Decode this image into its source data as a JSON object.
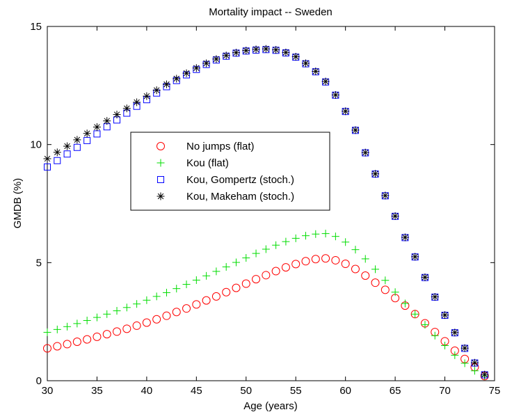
{
  "chart_data": {
    "type": "scatter",
    "title": "Mortality impact -- Sweden",
    "xlabel": "Age (years)",
    "ylabel": "GMDB (%)",
    "xlim": [
      30,
      75
    ],
    "ylim": [
      0,
      15
    ],
    "xticks": [
      30,
      35,
      40,
      45,
      50,
      55,
      60,
      65,
      70,
      75
    ],
    "yticks": [
      0,
      5,
      10,
      15
    ],
    "grid": false,
    "legend_position": "center-left",
    "x": [
      30,
      31,
      32,
      33,
      34,
      35,
      36,
      37,
      38,
      39,
      40,
      41,
      42,
      43,
      44,
      45,
      46,
      47,
      48,
      49,
      50,
      51,
      52,
      53,
      54,
      55,
      56,
      57,
      58,
      59,
      60,
      61,
      62,
      63,
      64,
      65,
      66,
      67,
      68,
      69,
      70,
      71,
      72,
      73,
      74
    ],
    "series": [
      {
        "name": "No jumps (flat)",
        "marker": "circle",
        "color": "#ff0000",
        "values": [
          1.37,
          1.46,
          1.55,
          1.65,
          1.75,
          1.86,
          1.97,
          2.08,
          2.2,
          2.33,
          2.46,
          2.6,
          2.75,
          2.91,
          3.06,
          3.23,
          3.4,
          3.57,
          3.75,
          3.93,
          4.11,
          4.3,
          4.47,
          4.64,
          4.8,
          4.94,
          5.06,
          5.15,
          5.18,
          5.1,
          4.95,
          4.73,
          4.45,
          4.15,
          3.85,
          3.5,
          3.18,
          2.82,
          2.43,
          2.06,
          1.67,
          1.27,
          0.92,
          0.58,
          0.2
        ]
      },
      {
        "name": "Kou (flat)",
        "marker": "plus",
        "color": "#00dd00",
        "values": [
          2.05,
          2.17,
          2.29,
          2.42,
          2.55,
          2.68,
          2.82,
          2.96,
          3.1,
          3.25,
          3.41,
          3.57,
          3.73,
          3.9,
          4.08,
          4.26,
          4.44,
          4.63,
          4.82,
          5.01,
          5.2,
          5.39,
          5.57,
          5.74,
          5.89,
          6.03,
          6.14,
          6.21,
          6.23,
          6.11,
          5.87,
          5.55,
          5.16,
          4.72,
          4.25,
          3.75,
          3.27,
          2.82,
          2.37,
          1.91,
          1.49,
          1.08,
          0.74,
          0.42,
          0.2
        ]
      },
      {
        "name": "Kou, Gompertz (stoch.)",
        "marker": "square",
        "color": "#0000ff",
        "values": [
          9.05,
          9.32,
          9.6,
          9.88,
          10.17,
          10.45,
          10.75,
          11.04,
          11.33,
          11.62,
          11.9,
          12.18,
          12.45,
          12.71,
          12.95,
          13.18,
          13.39,
          13.58,
          13.74,
          13.87,
          13.96,
          14.0,
          14.02,
          13.99,
          13.88,
          13.7,
          13.42,
          13.08,
          12.65,
          12.09,
          11.4,
          10.6,
          9.65,
          8.75,
          7.83,
          6.96,
          6.06,
          5.24,
          4.37,
          3.54,
          2.77,
          2.03,
          1.37,
          0.75,
          0.25
        ]
      },
      {
        "name": "Kou, Makeham (stoch.)",
        "marker": "asterisk",
        "color": "#000000",
        "values": [
          9.4,
          9.67,
          9.93,
          10.2,
          10.47,
          10.74,
          11.0,
          11.27,
          11.53,
          11.79,
          12.05,
          12.3,
          12.55,
          12.79,
          13.02,
          13.24,
          13.44,
          13.62,
          13.77,
          13.89,
          13.98,
          14.03,
          14.05,
          14.01,
          13.9,
          13.72,
          13.44,
          13.1,
          12.67,
          12.1,
          11.41,
          10.61,
          9.66,
          8.76,
          7.84,
          6.97,
          6.07,
          5.25,
          4.38,
          3.55,
          2.78,
          2.04,
          1.38,
          0.76,
          0.26
        ]
      }
    ]
  }
}
